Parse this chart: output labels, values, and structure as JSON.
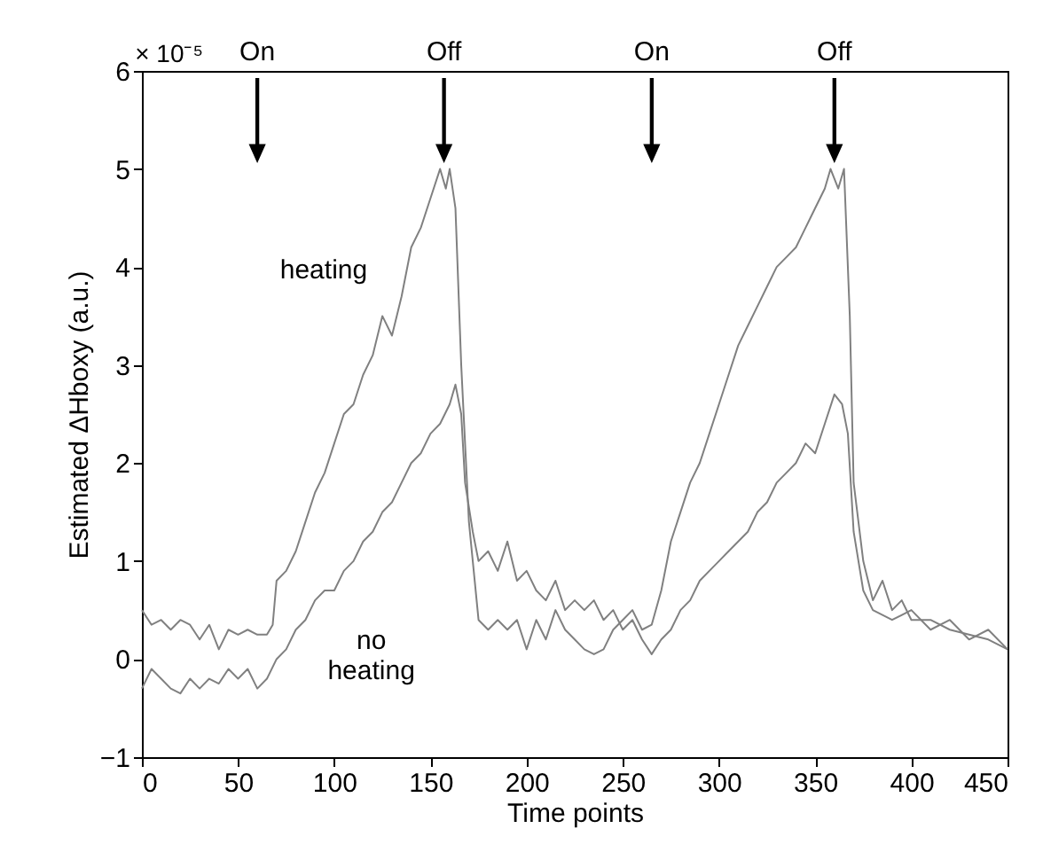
{
  "chart_data": {
    "type": "line",
    "xlabel": "Time points",
    "ylabel": "Estimated ΔHboxy (a.u.)",
    "xlim": [
      0,
      450
    ],
    "xticks": [
      0,
      50,
      100,
      150,
      200,
      250,
      300,
      350,
      400,
      450
    ],
    "ylim": [
      -1,
      6
    ],
    "yticks": [
      -1,
      0,
      1,
      2,
      3,
      4,
      5,
      6
    ],
    "grid": false,
    "legend": false,
    "marker": "none",
    "line_style": "solid",
    "annotations": [
      "× 10⁻⁵",
      "On",
      "Off",
      "On",
      "Off"
    ],
    "series": [
      {
        "name": "heating",
        "color": "#808080",
        "x": [
          0,
          5,
          10,
          15,
          20,
          25,
          30,
          35,
          40,
          45,
          50,
          55,
          60,
          65,
          68,
          70,
          75,
          80,
          85,
          90,
          95,
          100,
          105,
          110,
          115,
          120,
          125,
          130,
          135,
          140,
          145,
          150,
          155,
          158,
          160,
          163,
          166,
          170,
          175,
          180,
          185,
          190,
          195,
          200,
          205,
          210,
          215,
          220,
          225,
          230,
          235,
          240,
          245,
          250,
          255,
          260,
          265,
          270,
          275,
          280,
          285,
          290,
          295,
          300,
          305,
          310,
          315,
          320,
          325,
          330,
          335,
          340,
          345,
          350,
          355,
          358,
          362,
          365,
          368,
          370,
          375,
          380,
          385,
          390,
          395,
          400,
          410,
          420,
          430,
          440,
          450
        ],
        "values": [
          0.5,
          0.35,
          0.4,
          0.3,
          0.4,
          0.35,
          0.2,
          0.35,
          0.1,
          0.3,
          0.25,
          0.3,
          0.25,
          0.25,
          0.35,
          0.8,
          0.9,
          1.1,
          1.4,
          1.7,
          1.9,
          2.2,
          2.5,
          2.6,
          2.9,
          3.1,
          3.5,
          3.3,
          3.7,
          4.2,
          4.4,
          4.7,
          5.0,
          4.8,
          5.0,
          4.6,
          3.0,
          1.4,
          0.4,
          0.3,
          0.4,
          0.3,
          0.4,
          0.1,
          0.4,
          0.2,
          0.5,
          0.3,
          0.2,
          0.1,
          0.05,
          0.1,
          0.3,
          0.4,
          0.5,
          0.3,
          0.35,
          0.7,
          1.2,
          1.5,
          1.8,
          2.0,
          2.3,
          2.6,
          2.9,
          3.2,
          3.4,
          3.6,
          3.8,
          4.0,
          4.1,
          4.2,
          4.4,
          4.6,
          4.8,
          5.0,
          4.8,
          5.0,
          3.5,
          1.8,
          1.0,
          0.6,
          0.8,
          0.5,
          0.6,
          0.4,
          0.4,
          0.3,
          0.25,
          0.2,
          0.1
        ]
      },
      {
        "name": "no heating",
        "color": "#808080",
        "x": [
          0,
          5,
          10,
          15,
          20,
          25,
          30,
          35,
          40,
          45,
          50,
          55,
          60,
          65,
          70,
          75,
          80,
          85,
          90,
          95,
          100,
          105,
          110,
          115,
          120,
          125,
          130,
          135,
          140,
          145,
          150,
          155,
          160,
          163,
          166,
          168,
          172,
          175,
          180,
          185,
          190,
          195,
          200,
          205,
          210,
          215,
          220,
          225,
          230,
          235,
          240,
          245,
          250,
          255,
          260,
          265,
          270,
          275,
          280,
          285,
          290,
          295,
          300,
          305,
          310,
          315,
          320,
          325,
          330,
          335,
          340,
          345,
          350,
          355,
          360,
          364,
          367,
          370,
          375,
          380,
          390,
          400,
          410,
          420,
          430,
          440,
          450
        ],
        "values": [
          -0.3,
          -0.1,
          -0.2,
          -0.3,
          -0.35,
          -0.2,
          -0.3,
          -0.2,
          -0.25,
          -0.1,
          -0.2,
          -0.1,
          -0.3,
          -0.2,
          0.0,
          0.1,
          0.3,
          0.4,
          0.6,
          0.7,
          0.7,
          0.9,
          1.0,
          1.2,
          1.3,
          1.5,
          1.6,
          1.8,
          2.0,
          2.1,
          2.3,
          2.4,
          2.6,
          2.8,
          2.5,
          1.8,
          1.3,
          1.0,
          1.1,
          0.9,
          1.2,
          0.8,
          0.9,
          0.7,
          0.6,
          0.8,
          0.5,
          0.6,
          0.5,
          0.6,
          0.4,
          0.5,
          0.3,
          0.4,
          0.2,
          0.05,
          0.2,
          0.3,
          0.5,
          0.6,
          0.8,
          0.9,
          1.0,
          1.1,
          1.2,
          1.3,
          1.5,
          1.6,
          1.8,
          1.9,
          2.0,
          2.2,
          2.1,
          2.4,
          2.7,
          2.6,
          2.3,
          1.3,
          0.7,
          0.5,
          0.4,
          0.5,
          0.3,
          0.4,
          0.2,
          0.3,
          0.1
        ]
      }
    ]
  }
}
